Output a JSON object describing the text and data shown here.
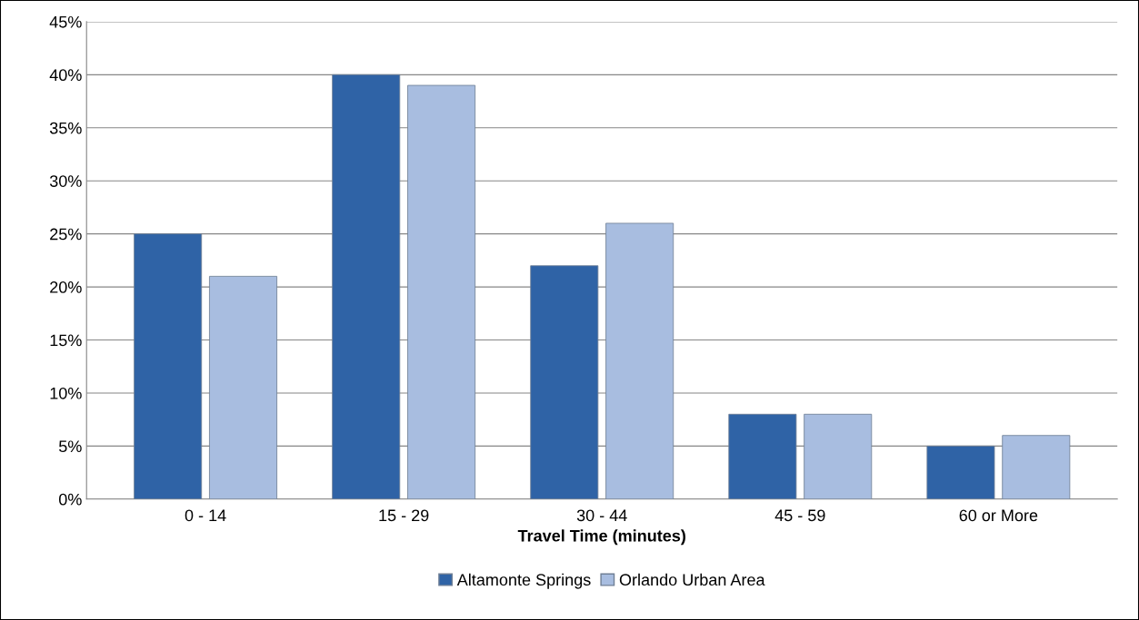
{
  "chart_data": {
    "type": "bar",
    "xlabel": "Travel Time (minutes)",
    "categories": [
      "0 - 14",
      "15 - 29",
      "30 - 44",
      "45 - 59",
      "60 or More"
    ],
    "series": [
      {
        "name": "Altamonte Springs",
        "color": "#2f63a6",
        "values": [
          25,
          40,
          22,
          8,
          5
        ]
      },
      {
        "name": "Orlando Urban Area",
        "color": "#a8bde0",
        "values": [
          21,
          39,
          26,
          8,
          6
        ]
      }
    ],
    "ylim": [
      0,
      45
    ],
    "yticks": [
      {
        "value": 0,
        "label": "0%"
      },
      {
        "value": 5,
        "label": "5%"
      },
      {
        "value": 10,
        "label": "10%"
      },
      {
        "value": 15,
        "label": "15%"
      },
      {
        "value": 20,
        "label": "20%"
      },
      {
        "value": 25,
        "label": "25%"
      },
      {
        "value": 30,
        "label": "30%"
      },
      {
        "value": 35,
        "label": "35%"
      },
      {
        "value": 40,
        "label": "40%"
      },
      {
        "value": 45,
        "label": "45%"
      }
    ],
    "grid": "y",
    "legend": "bottom"
  }
}
